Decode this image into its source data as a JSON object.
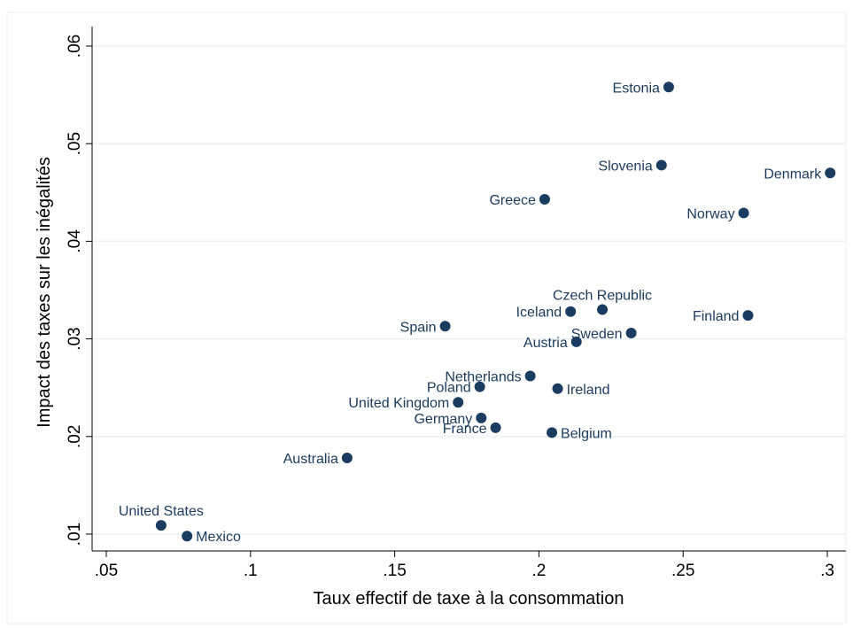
{
  "chart_data": {
    "type": "scatter",
    "xlabel": "Taux effectif de taxe à la consommation",
    "ylabel": "Impact des taxes sur les inégalités",
    "xlim": [
      0.05,
      0.3
    ],
    "ylim": [
      0.01,
      0.06
    ],
    "xticks": [
      ".05",
      ".1",
      ".15",
      ".2",
      ".25",
      ".3"
    ],
    "yticks": [
      ".01",
      ".02",
      ".03",
      ".04",
      ".05",
      ".06"
    ],
    "grid": "horizontal",
    "marker_color": "#1b3c61",
    "points": [
      {
        "label": "Estonia",
        "x": 0.245,
        "y": 0.0558,
        "pos": "left"
      },
      {
        "label": "Slovenia",
        "x": 0.2425,
        "y": 0.0478,
        "pos": "left"
      },
      {
        "label": "Denmark",
        "x": 0.301,
        "y": 0.047,
        "pos": "left"
      },
      {
        "label": "Greece",
        "x": 0.202,
        "y": 0.0443,
        "pos": "left"
      },
      {
        "label": "Norway",
        "x": 0.271,
        "y": 0.0429,
        "pos": "left"
      },
      {
        "label": "Czech Republic",
        "x": 0.222,
        "y": 0.033,
        "pos": "above"
      },
      {
        "label": "Iceland",
        "x": 0.211,
        "y": 0.0328,
        "pos": "left"
      },
      {
        "label": "Finland",
        "x": 0.2725,
        "y": 0.0324,
        "pos": "left"
      },
      {
        "label": "Spain",
        "x": 0.1675,
        "y": 0.0313,
        "pos": "left"
      },
      {
        "label": "Sweden",
        "x": 0.232,
        "y": 0.0306,
        "pos": "left"
      },
      {
        "label": "Austria",
        "x": 0.213,
        "y": 0.0297,
        "pos": "left"
      },
      {
        "label": "Netherlands",
        "x": 0.197,
        "y": 0.0262,
        "pos": "left"
      },
      {
        "label": "Poland",
        "x": 0.1795,
        "y": 0.0251,
        "pos": "left"
      },
      {
        "label": "Ireland",
        "x": 0.2065,
        "y": 0.0249,
        "pos": "right"
      },
      {
        "label": "United Kingdom",
        "x": 0.172,
        "y": 0.0235,
        "pos": "left"
      },
      {
        "label": "Germany",
        "x": 0.18,
        "y": 0.0219,
        "pos": "left"
      },
      {
        "label": "France",
        "x": 0.185,
        "y": 0.0209,
        "pos": "left"
      },
      {
        "label": "Belgium",
        "x": 0.2045,
        "y": 0.0204,
        "pos": "right"
      },
      {
        "label": "Australia",
        "x": 0.1335,
        "y": 0.0178,
        "pos": "left"
      },
      {
        "label": "United States",
        "x": 0.069,
        "y": 0.0109,
        "pos": "above"
      },
      {
        "label": "Mexico",
        "x": 0.078,
        "y": 0.0098,
        "pos": "right"
      }
    ]
  }
}
